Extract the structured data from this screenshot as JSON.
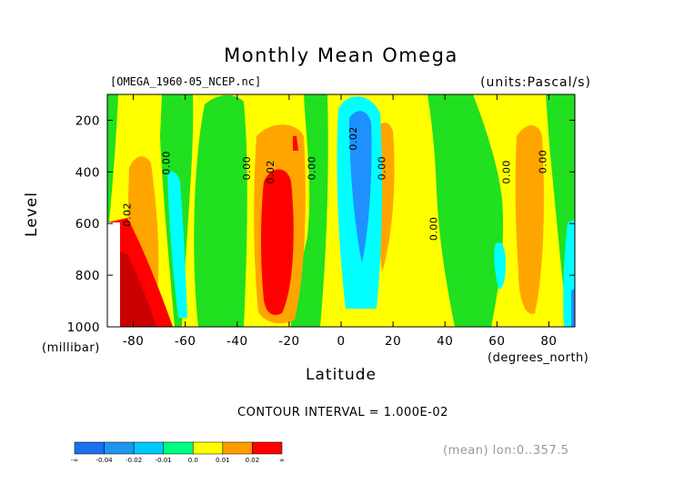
{
  "chart_data": {
    "type": "heatmap",
    "title": "Monthly Mean Omega",
    "source_file": "[OMEGA_1960-05_NCEP.nc]",
    "units": "(units:Pascal/s)",
    "xlabel": "Latitude",
    "x_unit_label": "(degrees_north)",
    "ylabel": "Level",
    "y_unit_label": "(millibar)",
    "xlim": [
      -90,
      90
    ],
    "ylim": [
      1000,
      100
    ],
    "x_ticks": [
      -80,
      -60,
      -40,
      -20,
      0,
      20,
      40,
      60,
      80
    ],
    "y_ticks": [
      200,
      400,
      600,
      800,
      1000
    ],
    "contour_interval": "CONTOUR INTERVAL = 1.000E-02",
    "footer_note": "(mean) lon:0..357.5",
    "contour_labels": [
      {
        "text": "0.02",
        "lat": -81,
        "lev": 565,
        "rotate": -90
      },
      {
        "text": "0.00",
        "lat": -66,
        "lev": 365,
        "rotate": -90
      },
      {
        "text": "0.00",
        "lat": -35,
        "lev": 385,
        "rotate": -90
      },
      {
        "text": "0.02",
        "lat": -26,
        "lev": 400,
        "rotate": -90
      },
      {
        "text": "0.00",
        "lat": -10,
        "lev": 385,
        "rotate": -90
      },
      {
        "text": "0.02",
        "lat": 6,
        "lev": 270,
        "rotate": -90
      },
      {
        "text": "0.00",
        "lat": 17,
        "lev": 385,
        "rotate": -90
      },
      {
        "text": "0.00",
        "lat": 37,
        "lev": 620,
        "rotate": -90
      },
      {
        "text": "0.00",
        "lat": 65,
        "lev": 400,
        "rotate": -90
      },
      {
        "text": "0.00",
        "lat": 79,
        "lev": 360,
        "rotate": -90
      }
    ],
    "legend": {
      "labels": [
        "-∞",
        "-0.04",
        "-0.02",
        "-0.01",
        "0.0",
        "0.01",
        "0.02",
        "∞"
      ],
      "colors": [
        "#1e6ef0",
        "#1e96f0",
        "#00c8ff",
        "#00ff80",
        "#ffff00",
        "#ff9d00",
        "#ff0000"
      ]
    },
    "bands": {
      "cyan": "#00ffff",
      "blue": "#1e90ff",
      "green": "#20e020",
      "yellow": "#ffff00",
      "orange": "#ffa500",
      "red": "#ff0000",
      "darkred": "#8b0000"
    }
  }
}
